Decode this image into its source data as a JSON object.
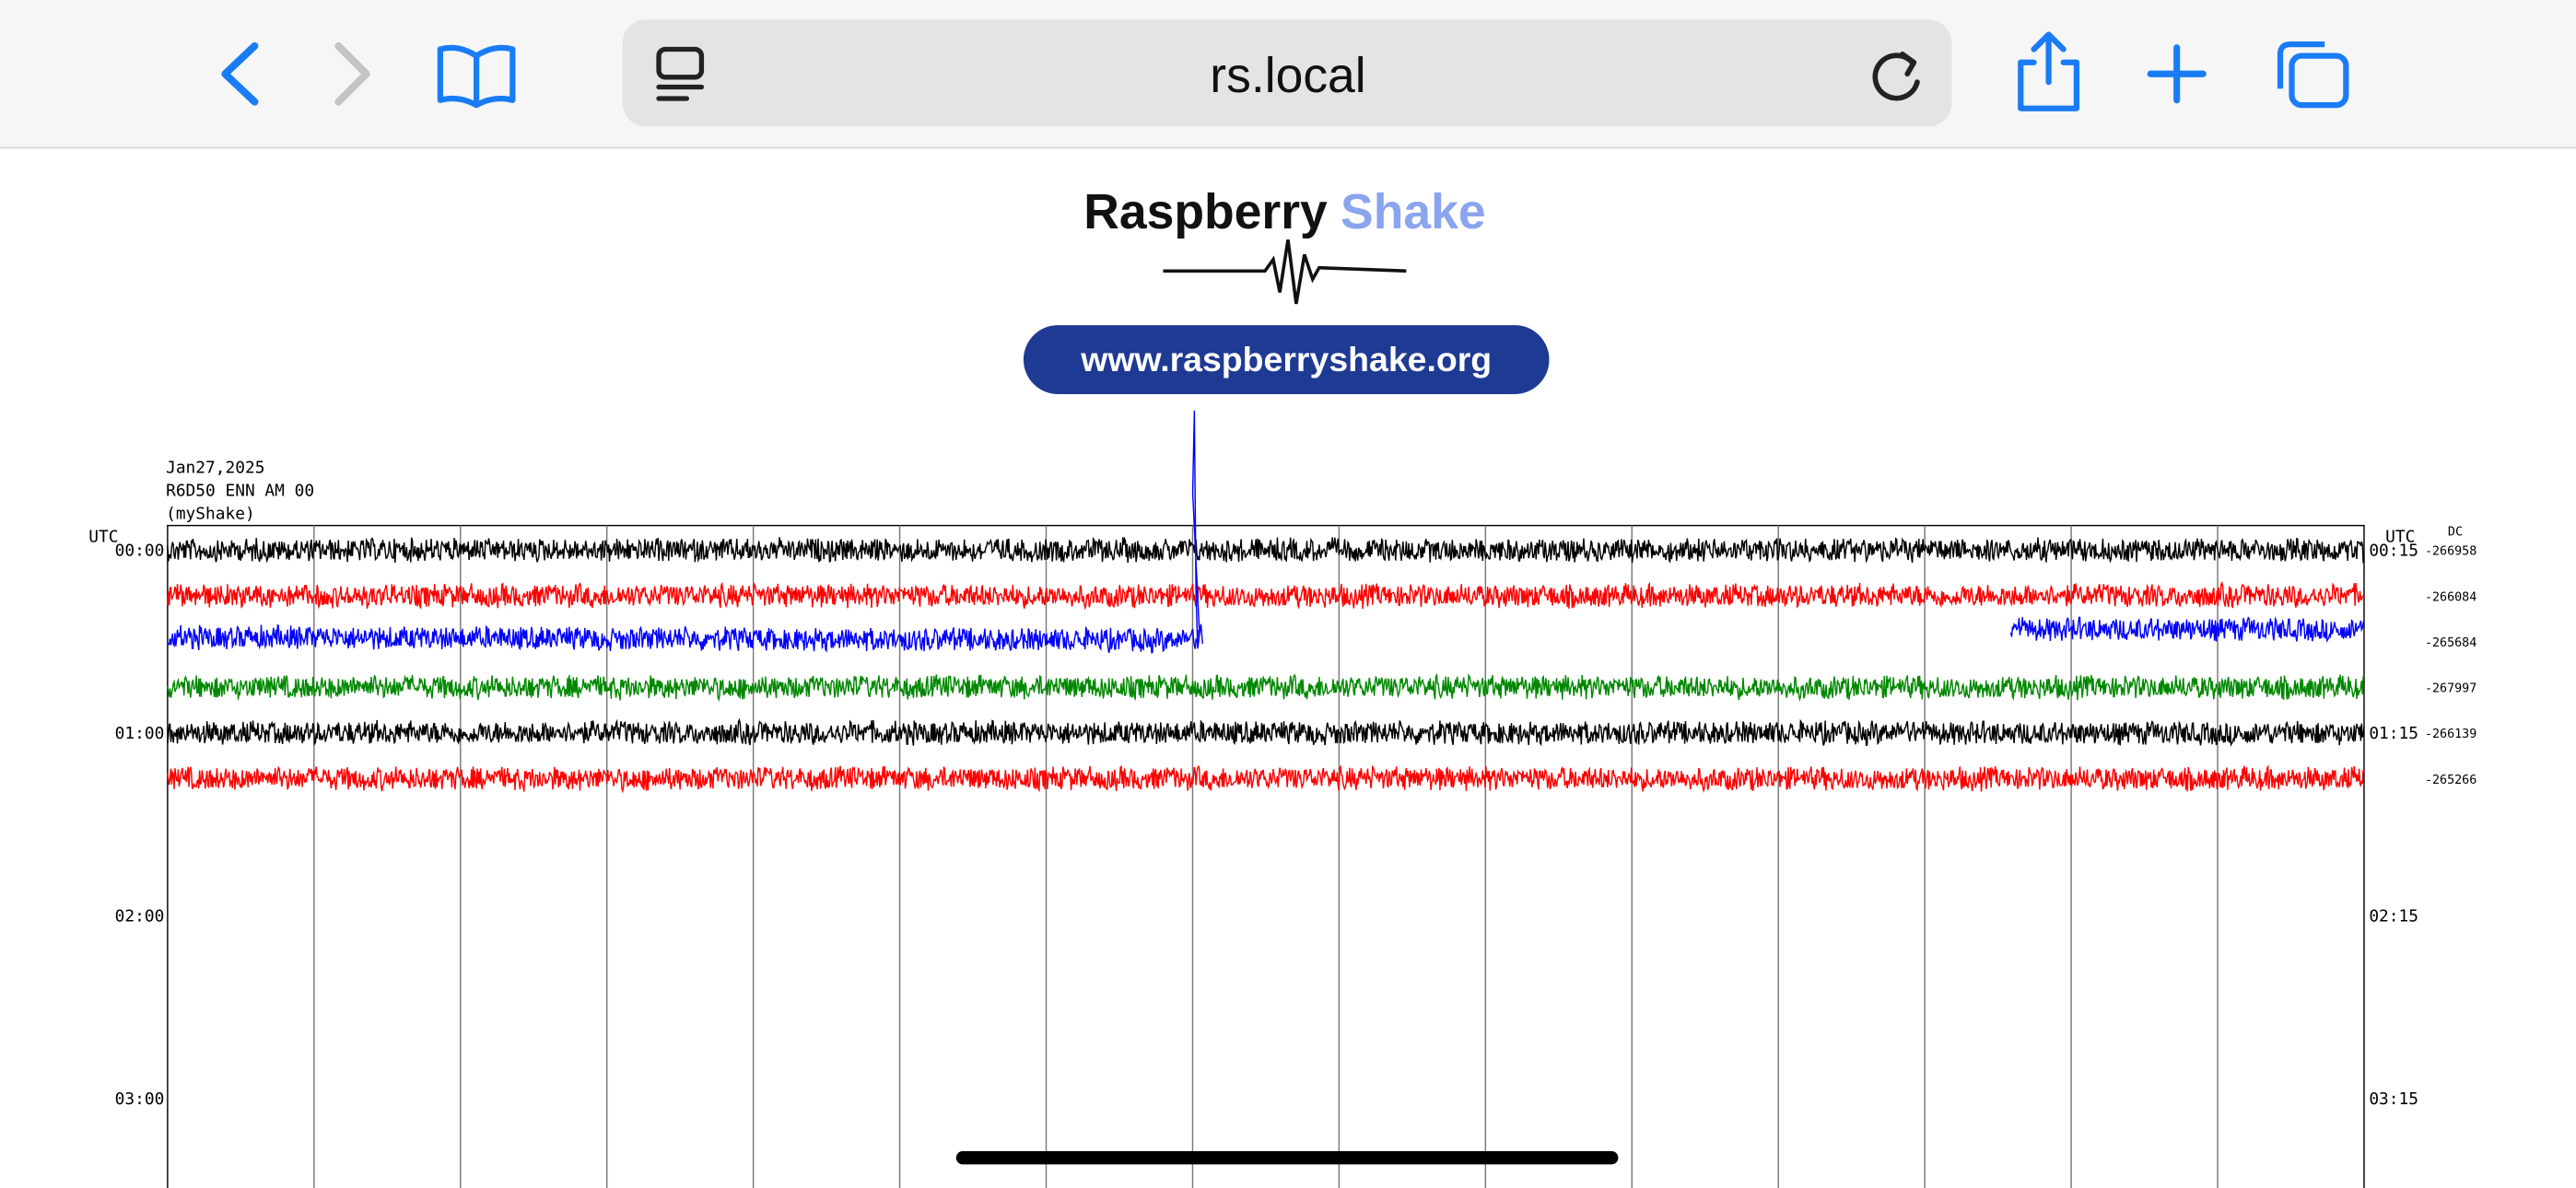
{
  "browser": {
    "url": "rs.local"
  },
  "logo": {
    "brand": "Raspberry",
    "brand_accent": "Shake",
    "website": "www.raspberryshake.org"
  },
  "helicorder": {
    "header": [
      "Jan27,2025",
      "R6D50 ENN AM 00",
      "(myShake)"
    ],
    "left_axis": {
      "title": "UTC",
      "labels": [
        "00:00",
        "01:00",
        "02:00",
        "03:00"
      ]
    },
    "right_axis": {
      "title": "UTC",
      "dc_title": "DC",
      "labels": [
        "00:15",
        "01:15",
        "02:15",
        "03:15"
      ]
    },
    "dc_values": [
      "-266958",
      "-266084",
      "-265684",
      "-267997",
      "-266139",
      "-265266"
    ]
  }
}
